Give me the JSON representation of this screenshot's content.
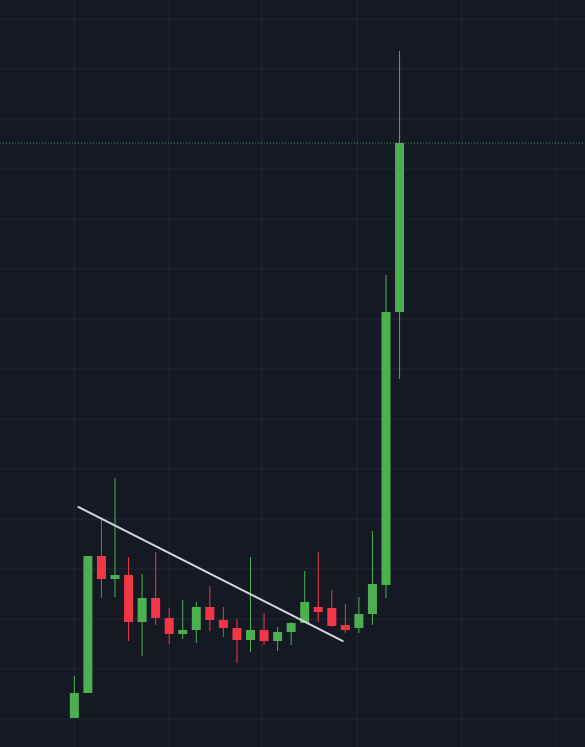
{
  "colors": {
    "background": "#151924",
    "grid": "#232733",
    "up": "#4caf50",
    "down": "#f23645",
    "trendline": "#d1d4dc",
    "price_line": "#4caf50"
  },
  "chart_data": {
    "type": "candlestick",
    "title": "",
    "xlabel": "",
    "ylabel": "",
    "grid": true,
    "ylim": [
      0,
      747
    ],
    "xlim": [
      0,
      31
    ],
    "candles": [
      {
        "i": 1,
        "open": 29,
        "high": 71,
        "low": 29,
        "close": 54
      },
      {
        "i": 2,
        "open": 54,
        "high": 191,
        "low": 54,
        "close": 191
      },
      {
        "i": 3,
        "open": 191,
        "high": 227,
        "low": 149,
        "close": 168
      },
      {
        "i": 4,
        "open": 168,
        "high": 269,
        "low": 150,
        "close": 172
      },
      {
        "i": 5,
        "open": 172,
        "high": 190,
        "low": 106,
        "close": 125
      },
      {
        "i": 6,
        "open": 125,
        "high": 173,
        "low": 91,
        "close": 149
      },
      {
        "i": 7,
        "open": 149,
        "high": 195,
        "low": 122,
        "close": 129
      },
      {
        "i": 8,
        "open": 129,
        "high": 139,
        "low": 103,
        "close": 113
      },
      {
        "i": 9,
        "open": 113,
        "high": 147,
        "low": 108,
        "close": 117
      },
      {
        "i": 10,
        "open": 117,
        "high": 145,
        "low": 104,
        "close": 140
      },
      {
        "i": 11,
        "open": 140,
        "high": 161,
        "low": 116,
        "close": 127
      },
      {
        "i": 12,
        "open": 127,
        "high": 140,
        "low": 110,
        "close": 119
      },
      {
        "i": 13,
        "open": 119,
        "high": 128,
        "low": 84,
        "close": 107
      },
      {
        "i": 14,
        "open": 107,
        "high": 190,
        "low": 95,
        "close": 117
      },
      {
        "i": 15,
        "open": 117,
        "high": 134,
        "low": 102,
        "close": 106
      },
      {
        "i": 16,
        "open": 106,
        "high": 120,
        "low": 96,
        "close": 115
      },
      {
        "i": 17,
        "open": 115,
        "high": 125,
        "low": 102,
        "close": 124
      },
      {
        "i": 18,
        "open": 124,
        "high": 176,
        "low": 124,
        "close": 145
      },
      {
        "i": 19,
        "open": 140,
        "high": 195,
        "low": 125,
        "close": 135
      },
      {
        "i": 20,
        "open": 139,
        "high": 157,
        "low": 120,
        "close": 121
      },
      {
        "i": 21,
        "open": 122,
        "high": 143,
        "low": 114,
        "close": 117
      },
      {
        "i": 22,
        "open": 119,
        "high": 150,
        "low": 114,
        "close": 133
      },
      {
        "i": 23,
        "open": 133,
        "high": 216,
        "low": 122,
        "close": 163
      },
      {
        "i": 24,
        "open": 162,
        "high": 472,
        "low": 149,
        "close": 435
      },
      {
        "i": 25,
        "open": 435,
        "high": 696,
        "low": 368,
        "close": 604
      }
    ],
    "trendline": {
      "x1": 1.3,
      "y1": 240,
      "x2": 20.8,
      "y2": 106
    },
    "price_line": 604
  }
}
